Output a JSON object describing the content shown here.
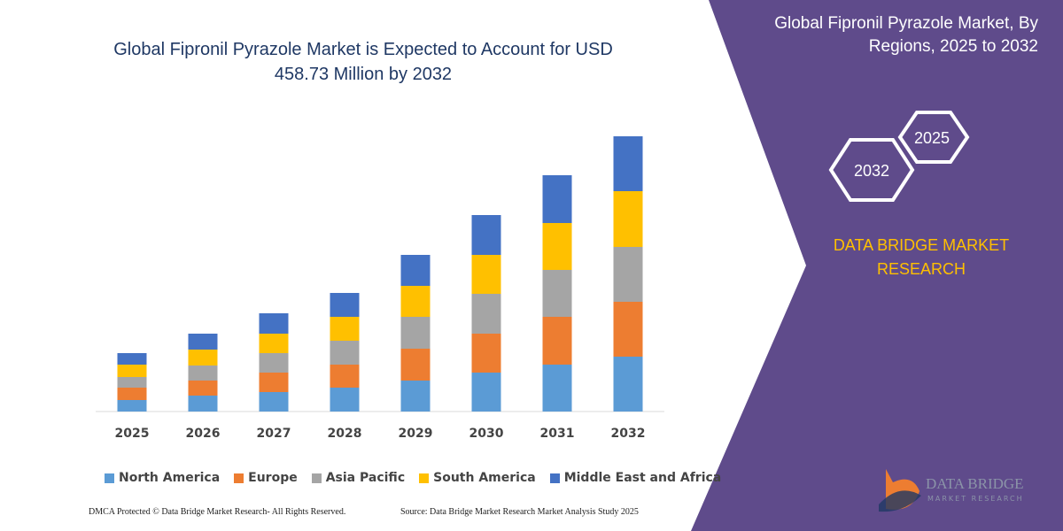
{
  "chart_data": {
    "type": "stacked_bar",
    "title": "Global Fipronil Pyrazole Market is Expected to Account for USD 458.73 Million by 2032",
    "categories": [
      "2025",
      "2026",
      "2027",
      "2028",
      "2029",
      "2030",
      "2031",
      "2032"
    ],
    "series": [
      {
        "name": "North America",
        "color": "#5b9bd5",
        "values": [
          13,
          18,
          22,
          27,
          35,
          44,
          53,
          62
        ]
      },
      {
        "name": "Europe",
        "color": "#ed7d31",
        "values": [
          14,
          17,
          22,
          26,
          36,
          44,
          54,
          62
        ]
      },
      {
        "name": "Asia Pacific",
        "color": "#a5a5a5",
        "values": [
          12,
          17,
          22,
          27,
          36,
          45,
          53,
          62
        ]
      },
      {
        "name": "South America",
        "color": "#ffc000",
        "values": [
          14,
          18,
          22,
          27,
          35,
          44,
          53,
          63
        ]
      },
      {
        "name": "Middle East and Africa",
        "color": "#4472c4",
        "values": [
          13,
          18,
          23,
          27,
          35,
          45,
          54,
          62
        ]
      }
    ]
  },
  "panel": {
    "title": "Global Fipronil Pyrazole Market, By Regions, 2025 to 2032",
    "hexagons": [
      "2025",
      "2032"
    ],
    "brand": "DATA BRIDGE MARKET RESEARCH"
  },
  "logo": {
    "name": "DATA BRIDGE",
    "tagline": "MARKET RESEARCH"
  },
  "footer": {
    "left": "DMCA Protected © Data Bridge Market Research- All Rights Reserved.",
    "right": "Source: Data Bridge Market Research Market Analysis Study 2025"
  }
}
